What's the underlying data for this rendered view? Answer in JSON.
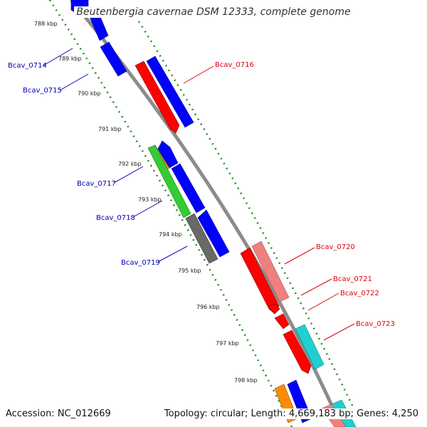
{
  "title": "Beutenbergia cavernae DSM 12333, complete genome",
  "accession": "Accession: NC_012669",
  "summary": "Topology: circular; Length: 4,669,183 bp; Genes: 4,250",
  "colors": {
    "backbone": "#8c8c8c",
    "forward_label": "#e0000b",
    "reverse_label": "#0000b0",
    "tick": "#228b22",
    "blue": "#0000ff",
    "red": "#ff0000",
    "pink": "#f08080",
    "green": "#32cd32",
    "orange": "#ff8c00",
    "grey": "#696969",
    "cyan": "#20d0d0"
  },
  "ticks": [
    {
      "label": "788 kbp",
      "kbp": 788
    },
    {
      "label": "789 kbp",
      "kbp": 789
    },
    {
      "label": "790 kbp",
      "kbp": 790
    },
    {
      "label": "791 kbp",
      "kbp": 791
    },
    {
      "label": "792 kbp",
      "kbp": 792
    },
    {
      "label": "793 kbp",
      "kbp": 793
    },
    {
      "label": "794 kbp",
      "kbp": 794
    },
    {
      "label": "795 kbp",
      "kbp": 795
    },
    {
      "label": "796 kbp",
      "kbp": 796
    },
    {
      "label": "797 kbp",
      "kbp": 797
    },
    {
      "label": "798 kbp",
      "kbp": 798
    }
  ],
  "gene_labels": [
    {
      "name": "Bcav_0714",
      "strand": "reverse"
    },
    {
      "name": "Bcav_0715",
      "strand": "reverse"
    },
    {
      "name": "Bcav_0716",
      "strand": "forward"
    },
    {
      "name": "Bcav_0717",
      "strand": "reverse"
    },
    {
      "name": "Bcav_0718",
      "strand": "reverse"
    },
    {
      "name": "Bcav_0719",
      "strand": "reverse"
    },
    {
      "name": "Bcav_0720",
      "strand": "forward"
    },
    {
      "name": "Bcav_0721",
      "strand": "forward"
    },
    {
      "name": "Bcav_0722",
      "strand": "forward"
    },
    {
      "name": "Bcav_0723",
      "strand": "forward"
    }
  ]
}
